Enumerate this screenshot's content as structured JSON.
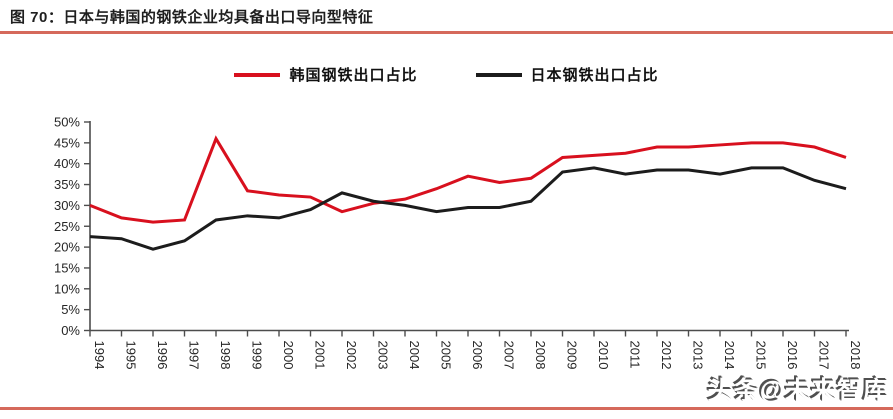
{
  "figure": {
    "title": "图 70：日本与韩国的钢铁企业均具备出口导向型特征",
    "watermark": "头条@未来智库"
  },
  "colors": {
    "korea_line": "#d8101e",
    "japan_line": "#1c1c1c",
    "title_underline": "#d5695b",
    "bottom_rule": "#d5695b",
    "axis": "#4d4d4d",
    "tick_label": "#262626"
  },
  "chart_data": {
    "type": "line",
    "title": "",
    "xlabel": "",
    "ylabel": "",
    "x": [
      1994,
      1995,
      1996,
      1997,
      1998,
      1999,
      2000,
      2001,
      2002,
      2003,
      2004,
      2005,
      2006,
      2007,
      2008,
      2009,
      2010,
      2011,
      2012,
      2013,
      2014,
      2015,
      2016,
      2017,
      2018
    ],
    "series": [
      {
        "name": "韩国钢铁出口占比",
        "color": "#d8101e",
        "values": [
          30,
          27,
          26,
          26.5,
          46,
          33.5,
          32.5,
          32,
          28.5,
          30.5,
          31.5,
          34,
          37,
          35.5,
          36.5,
          41.5,
          42,
          42.5,
          44,
          44,
          44.5,
          45,
          45,
          44,
          41.5
        ]
      },
      {
        "name": "日本钢铁出口占比",
        "color": "#1c1c1c",
        "values": [
          22.5,
          22,
          19.5,
          21.5,
          26.5,
          27.5,
          27,
          29,
          33,
          31,
          30,
          28.5,
          29.5,
          29.5,
          31,
          38,
          39,
          37.5,
          38.5,
          38.5,
          37.5,
          39,
          39,
          36,
          34
        ]
      }
    ],
    "ylim": [
      0,
      50
    ],
    "ytick_step": 5,
    "ytick_format": "percent",
    "ytick_labels": [
      "0%",
      "5%",
      "10%",
      "15%",
      "20%",
      "25%",
      "30%",
      "35%",
      "40%",
      "45%",
      "50%"
    ],
    "legend_position": "top",
    "grid": false
  }
}
